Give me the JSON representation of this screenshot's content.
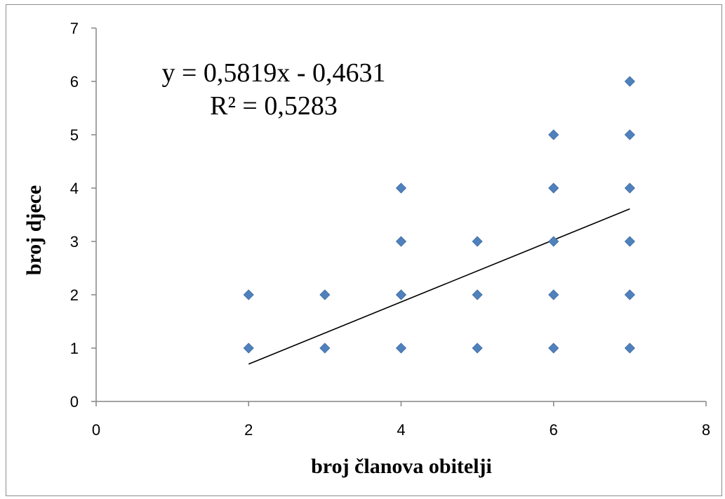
{
  "chart_data": {
    "type": "scatter",
    "xlabel": "broj članova obitelji",
    "ylabel": "broj djece",
    "xlim": [
      0,
      8
    ],
    "ylim": [
      0,
      7
    ],
    "x_ticks": [
      "0",
      "2",
      "4",
      "6",
      "8"
    ],
    "y_ticks": [
      "0",
      "1",
      "2",
      "3",
      "4",
      "5",
      "6",
      "7"
    ],
    "grid": false,
    "legend": "none",
    "marker": "diamond",
    "series": [
      {
        "color": "#4F81BD",
        "points": [
          {
            "x": 2,
            "y": 1
          },
          {
            "x": 2,
            "y": 2
          },
          {
            "x": 3,
            "y": 1
          },
          {
            "x": 3,
            "y": 2
          },
          {
            "x": 4,
            "y": 1
          },
          {
            "x": 4,
            "y": 2
          },
          {
            "x": 4,
            "y": 3
          },
          {
            "x": 4,
            "y": 4
          },
          {
            "x": 5,
            "y": 1
          },
          {
            "x": 5,
            "y": 2
          },
          {
            "x": 5,
            "y": 3
          },
          {
            "x": 6,
            "y": 1
          },
          {
            "x": 6,
            "y": 2
          },
          {
            "x": 6,
            "y": 3
          },
          {
            "x": 6,
            "y": 4
          },
          {
            "x": 6,
            "y": 5
          },
          {
            "x": 7,
            "y": 1
          },
          {
            "x": 7,
            "y": 2
          },
          {
            "x": 7,
            "y": 3
          },
          {
            "x": 7,
            "y": 4
          },
          {
            "x": 7,
            "y": 5
          },
          {
            "x": 7,
            "y": 6
          }
        ]
      }
    ],
    "trendline": {
      "type": "linear",
      "slope": 0.5819,
      "intercept": -0.4631,
      "x_range": [
        2,
        7
      ],
      "color": "#000000",
      "equation_label": "y = 0,5819x - 0,4631",
      "r2_label": "R² = 0,5283"
    }
  }
}
